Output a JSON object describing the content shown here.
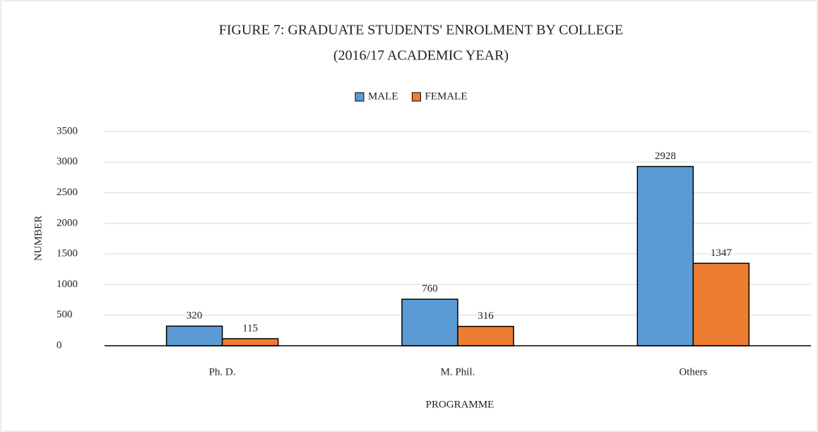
{
  "chart_data": {
    "type": "bar",
    "title": "FIGURE 7: GRADUATE STUDENTS' ENROLMENT BY COLLEGE",
    "subtitle": "(2016/17 ACADEMIC YEAR)",
    "x_label": "PROGRAMME",
    "y_label": "NUMBER",
    "categories": [
      "Ph. D.",
      "M. Phil.",
      "Others"
    ],
    "series": [
      {
        "name": "MALE",
        "color": "#5b9bd5",
        "values": [
          320,
          760,
          2928
        ]
      },
      {
        "name": "FEMALE",
        "color": "#ed7d31",
        "values": [
          115,
          316,
          1347
        ]
      }
    ],
    "ylim": [
      0,
      3500
    ],
    "yticks": [
      0,
      500,
      1000,
      1500,
      2000,
      2500,
      3000,
      3500
    ],
    "grid": true,
    "legend": "top"
  }
}
